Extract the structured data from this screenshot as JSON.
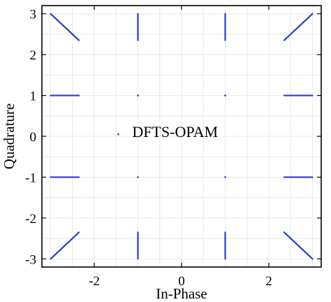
{
  "chart_data": {
    "type": "scatter",
    "title": "",
    "xlabel": "In-Phase",
    "ylabel": "Quadrature",
    "xlim": [
      -3.2,
      3.2
    ],
    "ylim": [
      -3.2,
      3.2
    ],
    "xticks": [
      "-2",
      "0",
      "2"
    ],
    "yticks": [
      "3",
      "2",
      "1",
      "0",
      "-1",
      "-2",
      "-3"
    ],
    "xtick_values": [
      -2,
      0,
      2
    ],
    "ytick_values": [
      3,
      2,
      1,
      0,
      -1,
      -2,
      -3
    ],
    "grid": true,
    "grid_color": "#e4eedc",
    "series_color": "#2a3bd0",
    "annotation": {
      "text": "DFTS-OPAM",
      "x": -1.45,
      "y": 0.1
    },
    "segments": [
      {
        "x1": -3,
        "y1": 3,
        "x2": -2.35,
        "y2": 2.35
      },
      {
        "x1": -1,
        "y1": 3,
        "x2": -1,
        "y2": 2.35
      },
      {
        "x1": 1,
        "y1": 3,
        "x2": 1,
        "y2": 2.35
      },
      {
        "x1": 3,
        "y1": 3,
        "x2": 2.35,
        "y2": 2.35
      },
      {
        "x1": -3,
        "y1": 1,
        "x2": -2.35,
        "y2": 1
      },
      {
        "x1": 2.35,
        "y1": 1,
        "x2": 3,
        "y2": 1
      },
      {
        "x1": -3,
        "y1": -1,
        "x2": -2.35,
        "y2": -1
      },
      {
        "x1": 2.35,
        "y1": -1,
        "x2": 3,
        "y2": -1
      },
      {
        "x1": -3,
        "y1": -3,
        "x2": -2.35,
        "y2": -2.35
      },
      {
        "x1": -1,
        "y1": -3,
        "x2": -1,
        "y2": -2.35
      },
      {
        "x1": 1,
        "y1": -3,
        "x2": 1,
        "y2": -2.35
      },
      {
        "x1": 3,
        "y1": -3,
        "x2": 2.35,
        "y2": -2.35
      }
    ],
    "points": [
      {
        "x": -1,
        "y": 1
      },
      {
        "x": 1,
        "y": 1
      },
      {
        "x": -1,
        "y": -1
      },
      {
        "x": 1,
        "y": -1
      },
      {
        "x": -1.45,
        "y": 0.05
      }
    ]
  }
}
